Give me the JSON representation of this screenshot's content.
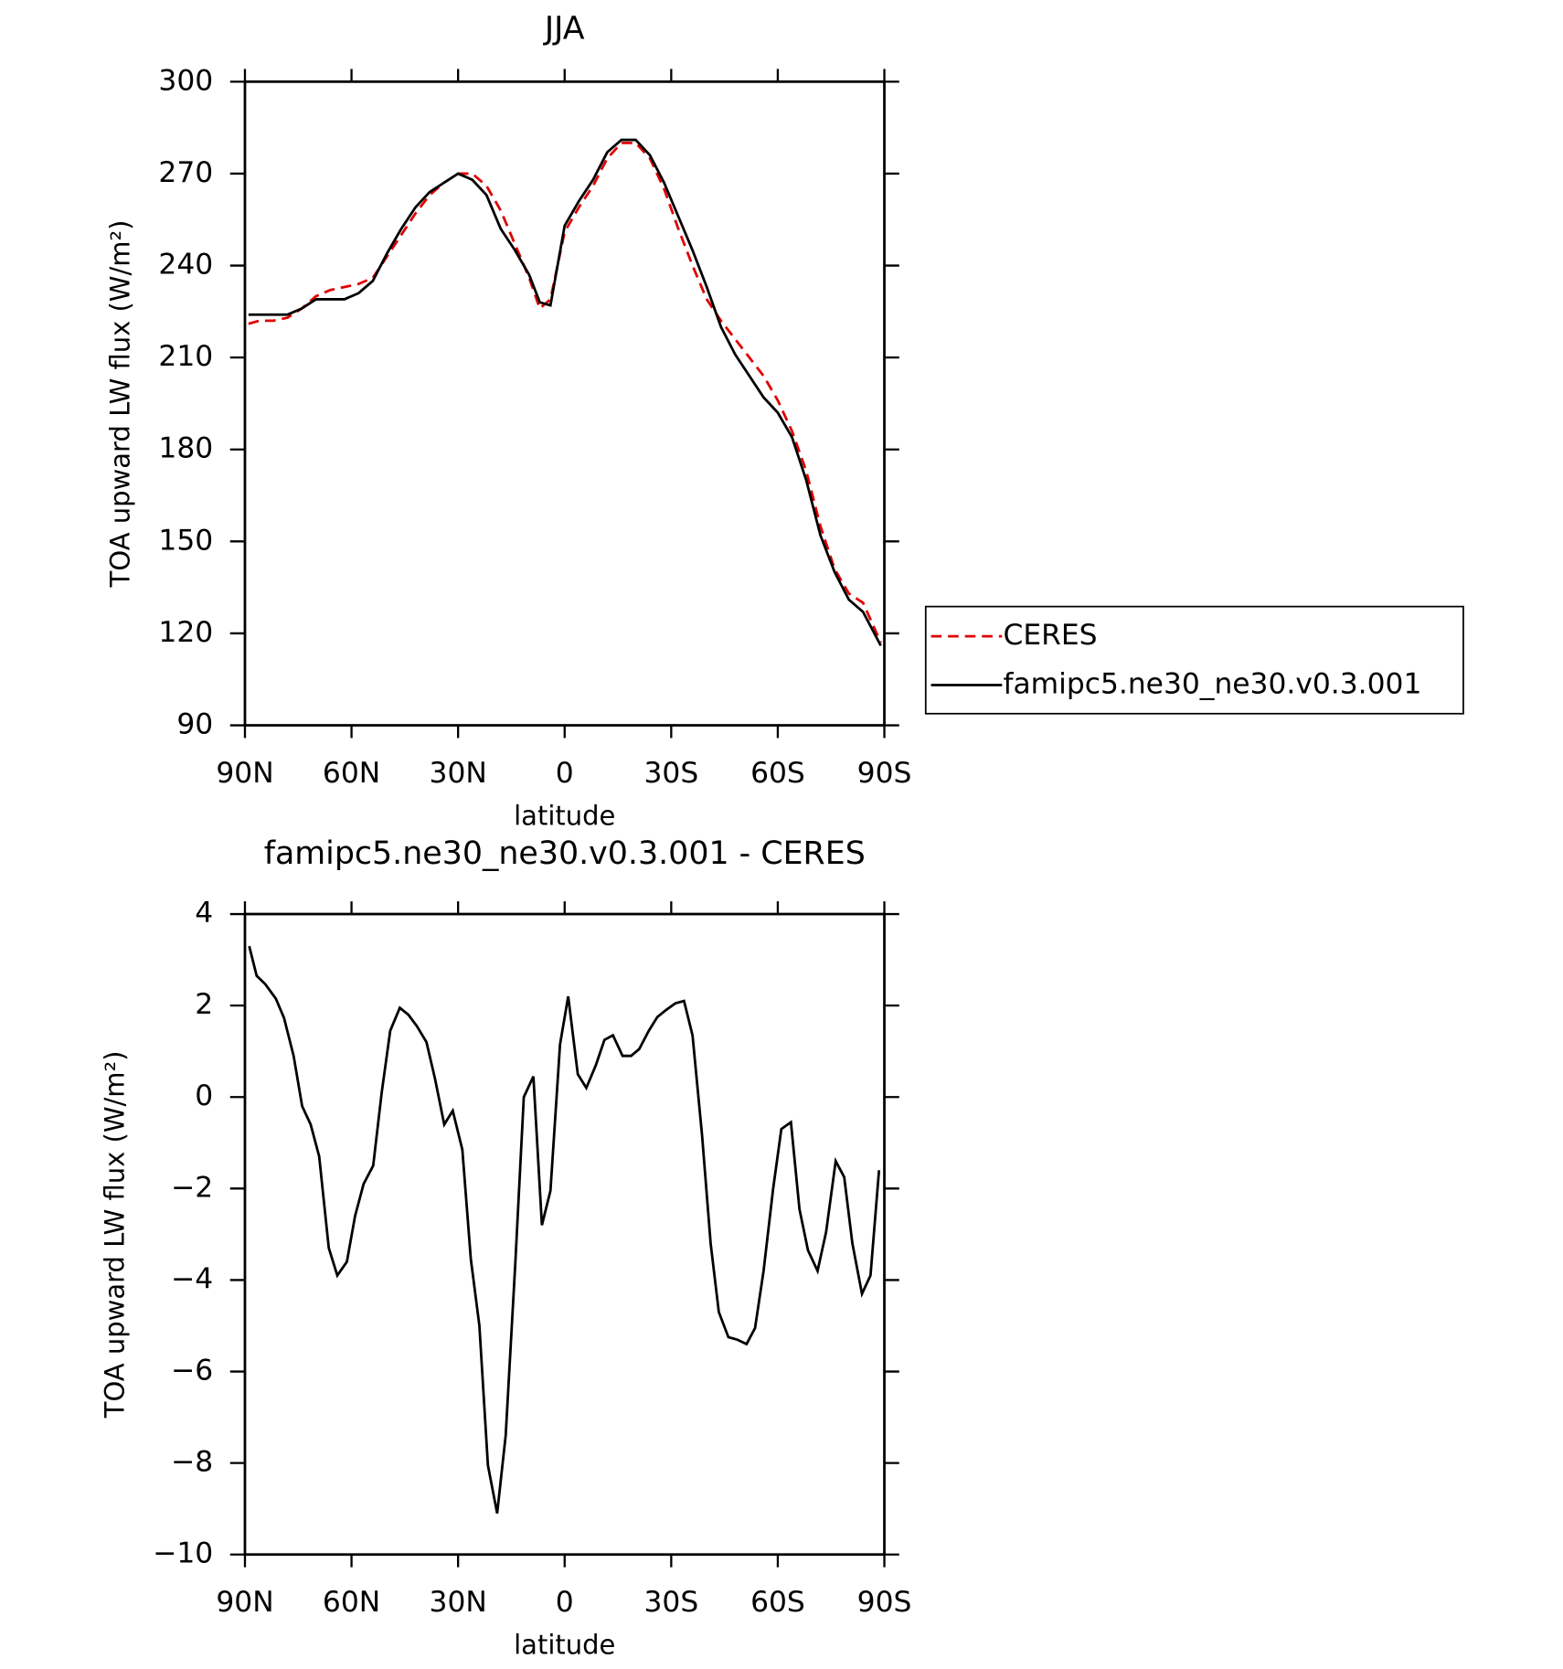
{
  "chart_data": [
    {
      "type": "line",
      "title": "JJA",
      "xlabel": "latitude",
      "ylabel": "TOA upward LW flux (W/m²)",
      "xlim": [
        90,
        -90
      ],
      "xticks": [
        {
          "value": 90,
          "label": "90N"
        },
        {
          "value": 60,
          "label": "60N"
        },
        {
          "value": 30,
          "label": "30N"
        },
        0,
        {
          "value": -30,
          "label": "30S"
        },
        {
          "value": -60,
          "label": "60S"
        },
        {
          "value": -90,
          "label": "90S"
        }
      ],
      "ylim": [
        90,
        300
      ],
      "yticks": [
        90,
        120,
        150,
        180,
        210,
        240,
        270,
        300
      ],
      "legend": "outside-right",
      "x": [
        89,
        86,
        82,
        78,
        74,
        70,
        66,
        62,
        58,
        54,
        50,
        46,
        42,
        38,
        34,
        30,
        26,
        22,
        18,
        14,
        10,
        7,
        4,
        0,
        -4,
        -8,
        -12,
        -16,
        -20,
        -24,
        -28,
        -32,
        -36,
        -40,
        -44,
        -48,
        -52,
        -56,
        -60,
        -64,
        -68,
        -72,
        -76,
        -80,
        -84,
        -89
      ],
      "series": [
        {
          "name": "CERES",
          "color": "#e00000",
          "linestyle": "dashed",
          "values": [
            221,
            222,
            222,
            223,
            226,
            230,
            232,
            233,
            234,
            236,
            243,
            250,
            257,
            263,
            267,
            270,
            270,
            266,
            258,
            247,
            236,
            226,
            229,
            251,
            259,
            266,
            275,
            280,
            280,
            275,
            265,
            252,
            240,
            229,
            222,
            216,
            210,
            204,
            196,
            186,
            173,
            155,
            141,
            133,
            130,
            117
          ]
        },
        {
          "name": "famipc5.ne30_ne30.v0.3.001",
          "color": "#000000",
          "linestyle": "solid",
          "values": [
            224,
            224,
            224,
            224,
            226,
            229,
            229,
            229,
            231,
            235,
            244,
            252,
            259,
            264,
            267,
            270,
            268,
            263,
            252,
            245,
            237,
            228,
            227,
            253,
            261,
            268,
            277,
            281,
            281,
            276,
            267,
            256,
            245,
            233,
            220,
            211,
            204,
            197,
            192,
            184,
            170,
            152,
            140,
            131,
            127,
            116
          ]
        }
      ]
    },
    {
      "type": "line",
      "title": "famipc5.ne30_ne30.v0.3.001 - CERES",
      "xlabel": "latitude",
      "ylabel": "TOA upward LW flux (W/m²)",
      "xlim": [
        90,
        -90
      ],
      "xticks": [
        {
          "value": 90,
          "label": "90N"
        },
        {
          "value": 60,
          "label": "60N"
        },
        {
          "value": 30,
          "label": "30N"
        },
        0,
        {
          "value": -30,
          "label": "30S"
        },
        {
          "value": -60,
          "label": "60S"
        },
        {
          "value": -90,
          "label": "90S"
        }
      ],
      "ylim": [
        -10,
        4
      ],
      "yticks": [
        {
          "value": -10,
          "label": "−10"
        },
        {
          "value": -8,
          "label": "−8"
        },
        {
          "value": -6,
          "label": "−6"
        },
        {
          "value": -4,
          "label": "−4"
        },
        {
          "value": -2,
          "label": "−2"
        },
        0,
        2,
        4
      ],
      "x": [
        88.8,
        86.7,
        84.3,
        81.3,
        79,
        76.3,
        73.9,
        71.5,
        69.1,
        66.4,
        64,
        61.3,
        59,
        56.6,
        53.9,
        51.5,
        49.1,
        46.4,
        44,
        41.6,
        38.9,
        36.5,
        33.9,
        31.5,
        28.8,
        26.4,
        24,
        21.6,
        19,
        16.6,
        13.9,
        11.5,
        8.8,
        6.4,
        4,
        1.3,
        -1,
        -3.7,
        -6.1,
        -8.8,
        -11.2,
        -13.6,
        -16.3,
        -18.7,
        -21,
        -23.7,
        -26.1,
        -28.5,
        -31.2,
        -33.6,
        -36,
        -38.7,
        -41.1,
        -43.4,
        -46.1,
        -48.5,
        -51.2,
        -53.6,
        -56,
        -58.7,
        -61,
        -63.7,
        -66.1,
        -68.5,
        -71.2,
        -73.6,
        -76.3,
        -78.7,
        -81,
        -83.7,
        -86.1,
        -88.5
      ],
      "color": "#000000",
      "values": [
        3.3,
        2.65,
        2.47,
        2.15,
        1.73,
        0.9,
        -0.2,
        -0.6,
        -1.3,
        -3.3,
        -3.9,
        -3.6,
        -2.6,
        -1.9,
        -1.5,
        0.1,
        1.45,
        1.95,
        1.8,
        1.55,
        1.2,
        0.4,
        -0.6,
        -0.3,
        -1.15,
        -3.55,
        -5,
        -8.05,
        -9.1,
        -7.4,
        -3.65,
        0,
        0.45,
        -2.8,
        -2.05,
        1.15,
        2.2,
        0.5,
        0.2,
        0.7,
        1.25,
        1.35,
        0.9,
        0.9,
        1.05,
        1.45,
        1.75,
        1.9,
        2.05,
        2.1,
        1.35,
        -0.85,
        -3.2,
        -4.7,
        -5.25,
        -5.3,
        -5.4,
        -5.05,
        -3.8,
        -2,
        -0.7,
        -0.55,
        -2.45,
        -3.35,
        -3.8,
        -2.95,
        -1.4,
        -1.75,
        -3.2,
        -4.3,
        -3.9,
        -1.6
      ]
    }
  ]
}
